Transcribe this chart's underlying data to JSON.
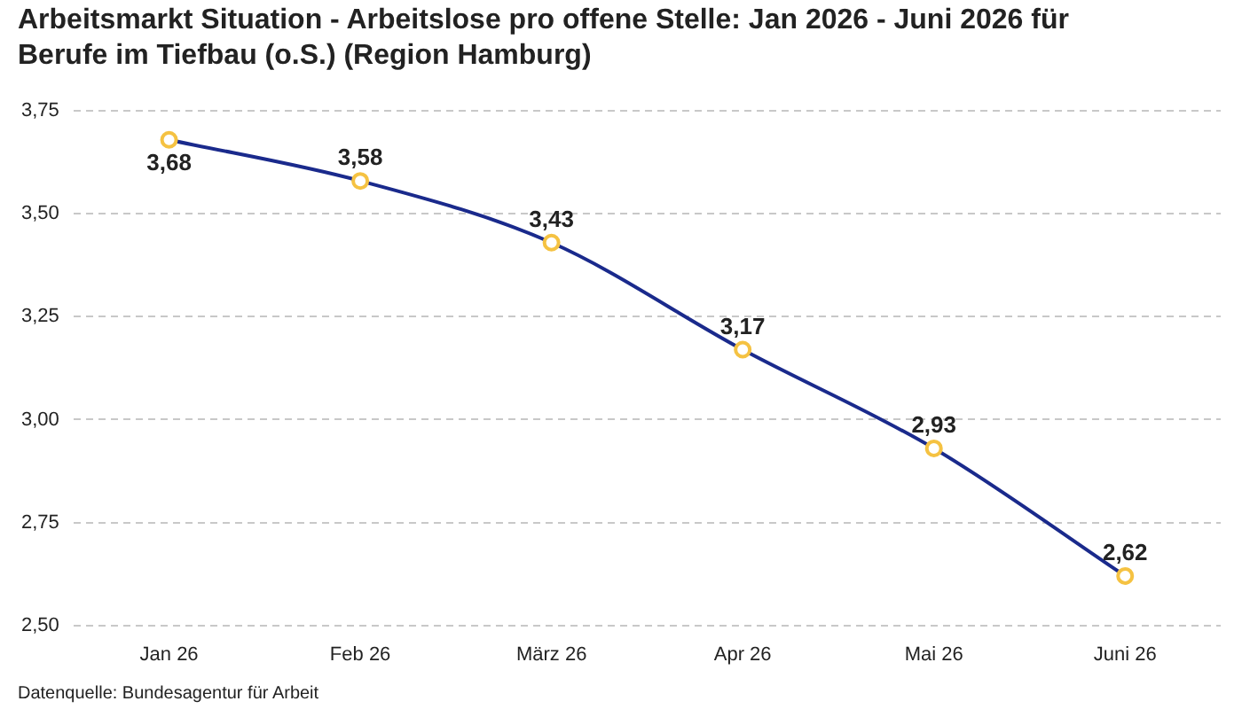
{
  "chart_data": {
    "type": "line",
    "title": "Arbeitsmarkt Situation - Arbeitslose pro offene Stelle: Jan 2026 - Juni 2026 für Berufe im Tiefbau (o.S.) (Region Hamburg)",
    "categories": [
      "Jan 26",
      "Feb 26",
      "März 26",
      "Apr 26",
      "Mai 26",
      "Juni 26"
    ],
    "series": [
      {
        "color": "#1a2a8c",
        "values": [
          3.68,
          3.58,
          3.43,
          3.17,
          2.93,
          2.62
        ],
        "value_labels": [
          "3,68",
          "3,58",
          "3,43",
          "3,17",
          "2,93",
          "2,62"
        ]
      }
    ],
    "ylim": [
      2.5,
      3.75
    ],
    "yticks": [
      {
        "value": 2.5,
        "label": "2,50"
      },
      {
        "value": 2.75,
        "label": "2,75"
      },
      {
        "value": 3,
        "label": "3,00"
      },
      {
        "value": 3.25,
        "label": "3,25"
      },
      {
        "value": 3.5,
        "label": "3,50"
      },
      {
        "value": 3.75,
        "label": "3,75"
      }
    ],
    "grid": "y",
    "legend": false,
    "marker": "circle",
    "line_style": "solid",
    "annotations": [
      "Datenquelle: Bundesagentur für Arbeit"
    ]
  }
}
